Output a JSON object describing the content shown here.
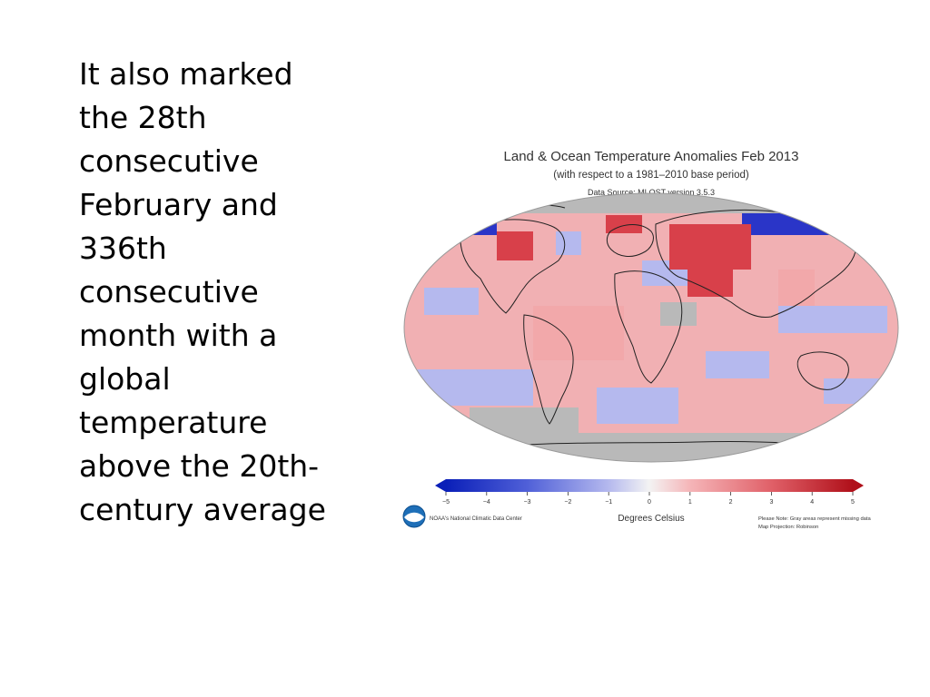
{
  "slide": {
    "text_lines": [
      "It also marked",
      "the 28th",
      "consecutive",
      "February and",
      "336th",
      "consecutive",
      "month with a",
      "global",
      "temperature",
      "above the 20th-",
      "century average"
    ]
  },
  "figure": {
    "title": "Land & Ocean Temperature Anomalies Feb 2013",
    "subtitle": "(with respect to a 1981–2010 base period)",
    "source": "Data Source: MLOST version 3.5.3",
    "colorbar": {
      "ticks": [
        "−5",
        "−4",
        "−3",
        "−2",
        "−1",
        "0",
        "1",
        "2",
        "3",
        "4",
        "5"
      ],
      "label": "Degrees Celsius",
      "min_color": "#0a1fb8",
      "zero_color": "#f3f3f3",
      "max_color": "#b0101a"
    },
    "credit": "NOAA's National Climatic Data Center",
    "note_line1": "Please Note: Gray areas represent missing data",
    "note_line2": "Map Projection: Robinson",
    "colors": {
      "missing": "#b9b9b9",
      "warm": "#f2a8aa",
      "hot": "#d8404a",
      "cool": "#b5b9ee",
      "cold": "#2a35c8"
    }
  }
}
